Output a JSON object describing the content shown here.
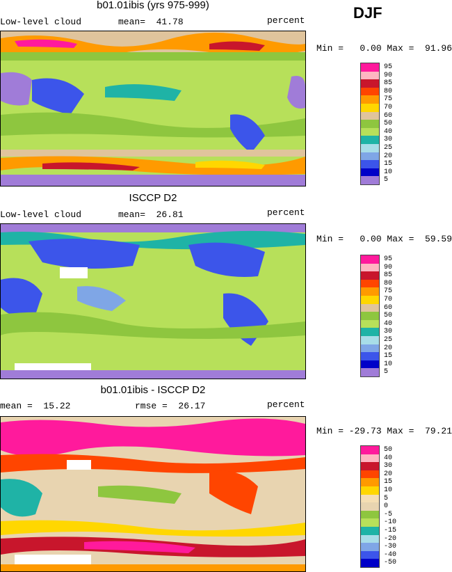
{
  "season": "DJF",
  "panels": [
    {
      "title": "b01.01ibis (yrs 975-999)",
      "left_label": "Low-level cloud",
      "mean_label": "mean=  41.78",
      "right_label": "percent",
      "minmax": "Min =   0.00 Max =  91.96",
      "legend_labels": [
        "95",
        "90",
        "85",
        "80",
        "75",
        "70",
        "60",
        "50",
        "40",
        "30",
        "25",
        "20",
        "15",
        "10",
        "5"
      ],
      "legend_colors": [
        "#ff1a9c",
        "#ffb6c1",
        "#c8162c",
        "#ff4500",
        "#ff9a00",
        "#ffd700",
        "#e0c49c",
        "#8ec63f",
        "#b7e05a",
        "#1fb3a6",
        "#a8dde8",
        "#7fa6e6",
        "#3c55ea",
        "#0000c8",
        "#a07cd8"
      ]
    },
    {
      "title": "ISCCP D2",
      "left_label": "Low-level cloud",
      "mean_label": "mean=  26.81",
      "right_label": "percent",
      "minmax": "Min =   0.00 Max =  59.59",
      "legend_labels": [
        "95",
        "90",
        "85",
        "80",
        "75",
        "70",
        "60",
        "50",
        "40",
        "30",
        "25",
        "20",
        "15",
        "10",
        "5"
      ],
      "legend_colors": [
        "#ff1a9c",
        "#ffb6c1",
        "#c8162c",
        "#ff4500",
        "#ff9a00",
        "#ffd700",
        "#e0c49c",
        "#8ec63f",
        "#b7e05a",
        "#1fb3a6",
        "#a8dde8",
        "#7fa6e6",
        "#3c55ea",
        "#0000c8",
        "#a07cd8"
      ]
    },
    {
      "title": "b01.01ibis - ISCCP D2",
      "left_label": "mean =  15.22",
      "mean_label": "rmse =  26.17",
      "right_label": "percent",
      "minmax": "Min = -29.73 Max =  79.21",
      "legend_labels": [
        "50",
        "40",
        "30",
        "20",
        "15",
        "10",
        "5",
        "0",
        "-5",
        "-10",
        "-15",
        "-20",
        "-30",
        "-40",
        "-50"
      ],
      "legend_colors": [
        "#ff1a9c",
        "#ffb6c1",
        "#c8162c",
        "#ff4500",
        "#ff9a00",
        "#ffd700",
        "#f5deb3",
        "#e8d4b0",
        "#8ec63f",
        "#b7e05a",
        "#1fb3a6",
        "#a8dde8",
        "#7fa6e6",
        "#3c55ea",
        "#0000c8"
      ]
    }
  ]
}
